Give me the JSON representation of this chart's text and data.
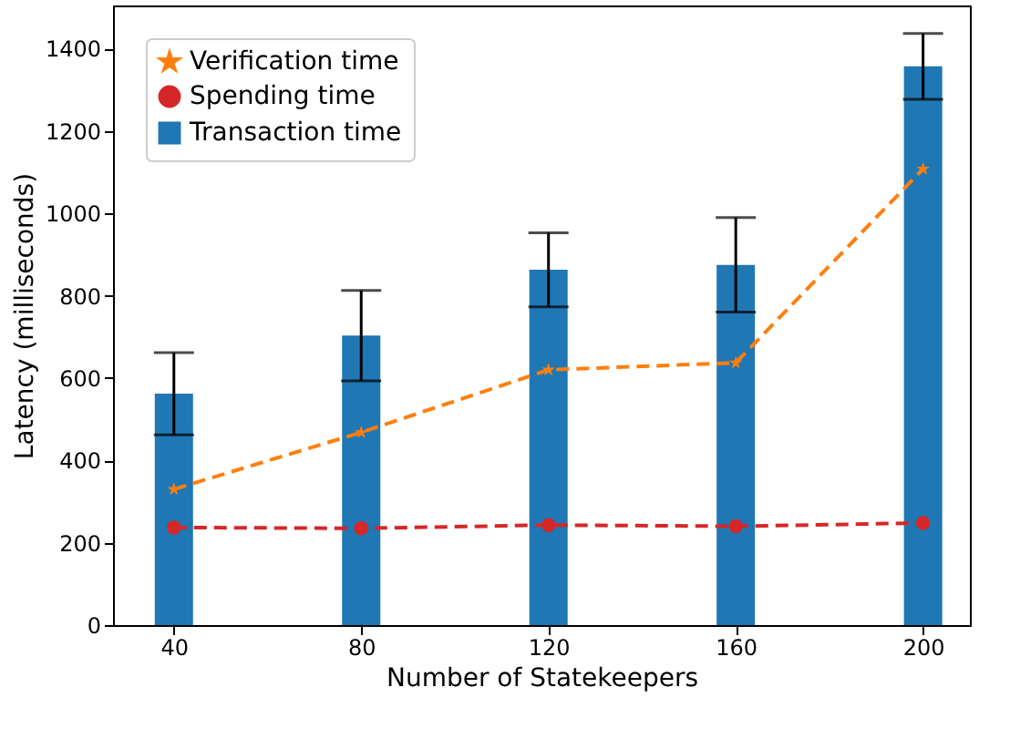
{
  "chart_data": {
    "type": "bar",
    "xlabel": "Number of Statekeepers",
    "ylabel": "Latency (milliseconds)",
    "x": [
      40,
      80,
      120,
      160,
      200
    ],
    "series": [
      {
        "name": "Verification time",
        "type": "line",
        "color": "#ff7f0e",
        "marker": "star",
        "line_style": "dashed",
        "values": [
          330,
          468,
          620,
          637,
          1108
        ]
      },
      {
        "name": "Spending time",
        "type": "line",
        "color": "#d62728",
        "marker": "circle",
        "line_style": "dashed",
        "values": [
          237,
          235,
          243,
          240,
          248
        ]
      },
      {
        "name": "Transaction time",
        "color": "#1f77b4",
        "values": [
          562,
          703,
          863,
          875,
          1357
        ],
        "errors": [
          100,
          110,
          90,
          115,
          80
        ]
      }
    ],
    "xlim": [
      27,
      210
    ],
    "xticks": [
      40,
      80,
      120,
      160,
      200
    ],
    "ylim": [
      0,
      1505
    ],
    "yticks": [
      0,
      200,
      400,
      600,
      800,
      1000,
      1200,
      1400
    ],
    "grid": false,
    "legend": "top left"
  }
}
